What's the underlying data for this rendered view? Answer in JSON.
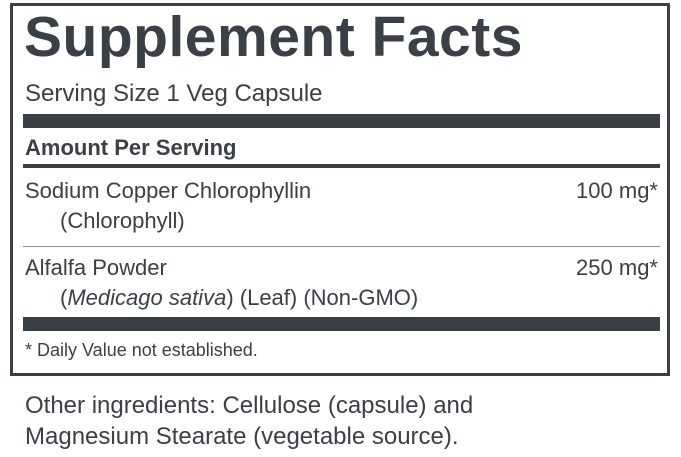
{
  "header": {
    "title": "Supplement Facts",
    "serving_size": "Serving Size 1 Veg Capsule"
  },
  "table": {
    "heading": "Amount Per Serving",
    "rows": [
      {
        "name": "Sodium Copper Chlorophyllin",
        "detail": [
          "(Chlorophyll)"
        ],
        "amount": "100 mg*"
      },
      {
        "name": "Alfalfa Powder",
        "detail": [
          "(",
          "Medicago sativa",
          ") (Leaf) (Non-GMO)"
        ],
        "amount": "250 mg*"
      }
    ],
    "footnote": "* Daily Value not established."
  },
  "other_ingredients": [
    "Other ingredients: Cellulose (capsule) and",
    "Magnesium Stearate (vegetable source)."
  ]
}
